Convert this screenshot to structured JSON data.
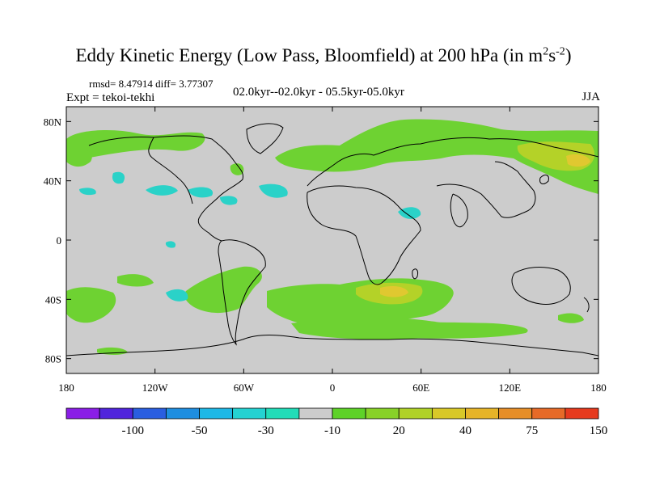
{
  "title": {
    "prefix": "Eddy Kinetic Energy (Low Pass, Bloomfield) at 200 hPa (in m",
    "sup1": "2",
    "mid": "s",
    "sup2": "-2",
    "suffix": ")"
  },
  "stats": "rmsd= 8.47914 diff= 3.77307",
  "experiment": "Expt = tekoi-tekhi",
  "period": "02.0kyr--02.0kyr - 05.5kyr-05.0kyr",
  "season": "JJA",
  "axes": {
    "lat_ticks": [
      "80N",
      "40N",
      "0",
      "40S",
      "80S"
    ],
    "lon_ticks": [
      "180",
      "120W",
      "60W",
      "0",
      "60E",
      "120E",
      "180"
    ]
  },
  "colorbar": {
    "labels": [
      "-100",
      "-50",
      "-30",
      "-10",
      "20",
      "40",
      "75",
      "150"
    ],
    "colors": [
      "#8a1ee6",
      "#5024dc",
      "#2a5ee0",
      "#1e8ee0",
      "#1eb8e6",
      "#24d2d2",
      "#22dcb8",
      "#cccccc",
      "#5ed228",
      "#88d228",
      "#b0d228",
      "#d8c828",
      "#e6b428",
      "#e68e28",
      "#e66a28",
      "#e63a1e"
    ]
  },
  "map": {
    "background_color": "#cccccc",
    "positive_color": "#6ed232",
    "strong_positive_color": "#b4d228",
    "peak_color": "#e0c830",
    "negative_color": "#2ad2c8"
  }
}
